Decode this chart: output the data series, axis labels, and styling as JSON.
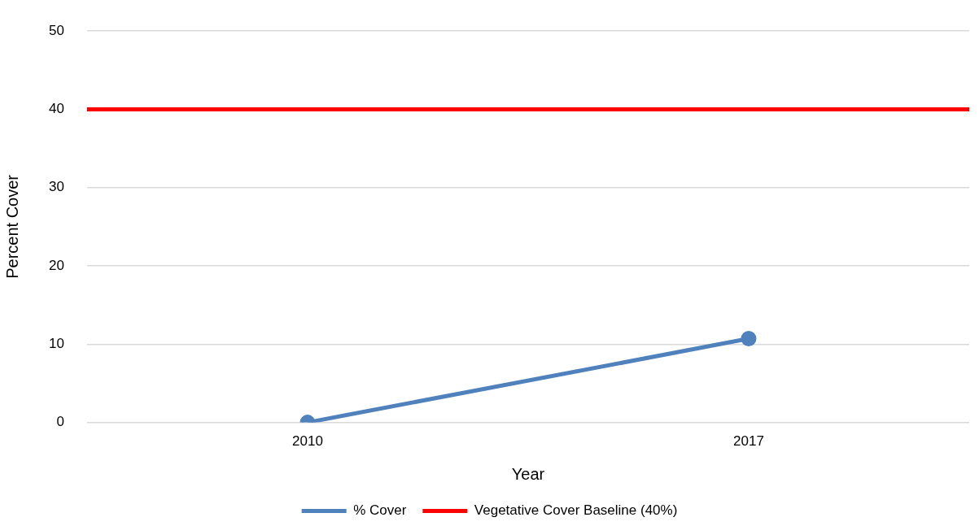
{
  "chart_data": {
    "type": "line",
    "xlabel": "Year",
    "ylabel": "Percent Cover",
    "categories": [
      "2010",
      "2017"
    ],
    "series": [
      {
        "name": "% Cover",
        "color": "#4f81bd",
        "values": [
          0,
          10.7
        ]
      }
    ],
    "ref_lines": [
      {
        "axis": "y",
        "value": 40,
        "label": "Vegetative Cover Baseline (40%)",
        "color": "#ff0000"
      }
    ],
    "ylim": [
      0,
      50
    ],
    "yticks": [
      0,
      10,
      20,
      30,
      40,
      50
    ],
    "grid": "y",
    "legend": "bottom",
    "marker": "circle",
    "line_style": "solid"
  }
}
